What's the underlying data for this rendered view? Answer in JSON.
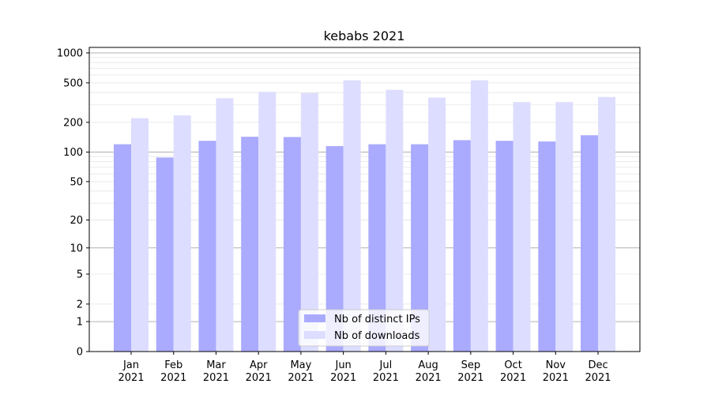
{
  "chart_data": {
    "type": "bar",
    "title": "kebabs 2021",
    "xlabel": "",
    "ylabel": "",
    "yscale": "symlog",
    "ylim": [
      0,
      1000
    ],
    "yticks": [
      0,
      1,
      2,
      5,
      10,
      20,
      50,
      100,
      200,
      500,
      1000
    ],
    "grid": true,
    "legend_position": "bottom-center",
    "categories": [
      [
        "Jan",
        "2021"
      ],
      [
        "Feb",
        "2021"
      ],
      [
        "Mar",
        "2021"
      ],
      [
        "Apr",
        "2021"
      ],
      [
        "May",
        "2021"
      ],
      [
        "Jun",
        "2021"
      ],
      [
        "Jul",
        "2021"
      ],
      [
        "Aug",
        "2021"
      ],
      [
        "Sep",
        "2021"
      ],
      [
        "Oct",
        "2021"
      ],
      [
        "Nov",
        "2021"
      ],
      [
        "Dec",
        "2021"
      ]
    ],
    "series": [
      {
        "name": "Nb of distinct IPs",
        "color": "#aaaaff",
        "values": [
          120,
          88,
          130,
          143,
          142,
          115,
          120,
          120,
          132,
          130,
          128,
          148
        ]
      },
      {
        "name": "Nb of downloads",
        "color": "#ddddff",
        "values": [
          220,
          235,
          350,
          405,
          395,
          530,
          425,
          355,
          530,
          320,
          320,
          360
        ]
      }
    ]
  }
}
